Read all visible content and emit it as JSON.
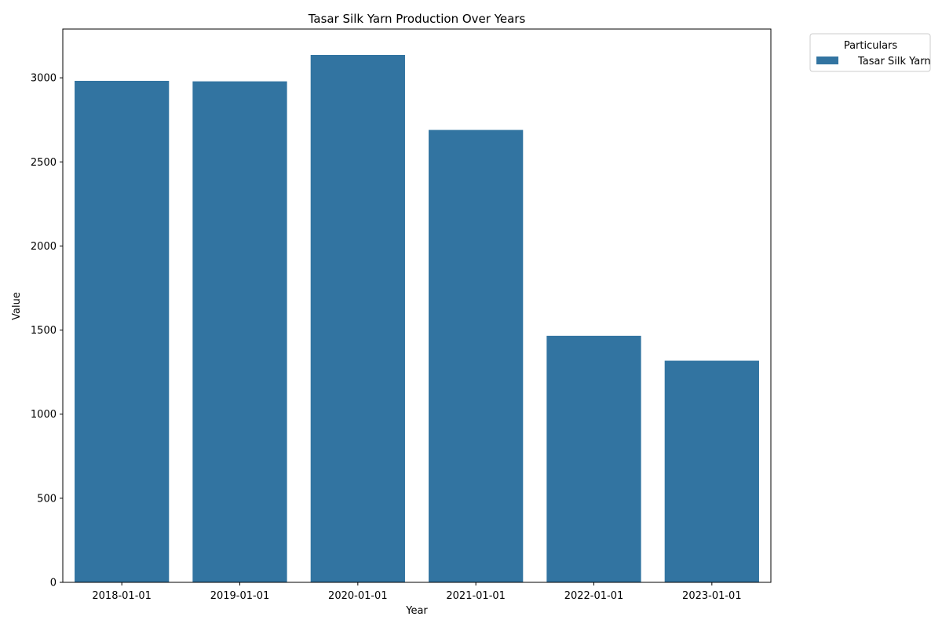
{
  "chart_data": {
    "type": "bar",
    "title": "Tasar Silk Yarn Production Over Years",
    "xlabel": "Year",
    "ylabel": "Value",
    "categories": [
      "2018-01-01",
      "2019-01-01",
      "2020-01-01",
      "2021-01-01",
      "2022-01-01",
      "2023-01-01"
    ],
    "series": [
      {
        "name": "Tasar Silk Yarn",
        "color": "#3274a1",
        "values": [
          2982,
          2979,
          3136,
          2690,
          1466,
          1318
        ]
      }
    ],
    "ylim": [
      0,
      3290
    ],
    "yticks": [
      0,
      500,
      1000,
      1500,
      2000,
      2500,
      3000
    ],
    "legend": {
      "title": "Particulars",
      "placement": "outside-top-right"
    },
    "grid": false
  }
}
